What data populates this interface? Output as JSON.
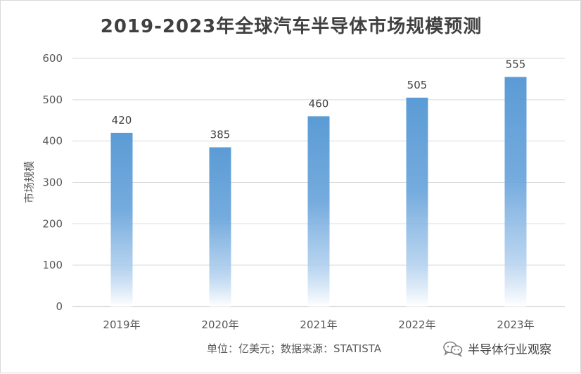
{
  "chart_data": {
    "type": "bar",
    "title": "2019-2023年全球汽车半导体市场规模预测",
    "xlabel": "",
    "ylabel": "市场规模",
    "categories": [
      "2019年",
      "2020年",
      "2021年",
      "2022年",
      "2023年"
    ],
    "values": [
      420,
      385,
      460,
      505,
      555
    ],
    "ylim": [
      0,
      600
    ],
    "yticks": [
      0,
      100,
      200,
      300,
      400,
      500,
      600
    ],
    "grid": true,
    "legend": "none",
    "bar_color": "#5b9bd5"
  },
  "footer": {
    "source": "单位：亿美元；数据来源：STATISTA",
    "watermark": "半导体行业观察",
    "watermark_icon": "wechat-icon"
  }
}
